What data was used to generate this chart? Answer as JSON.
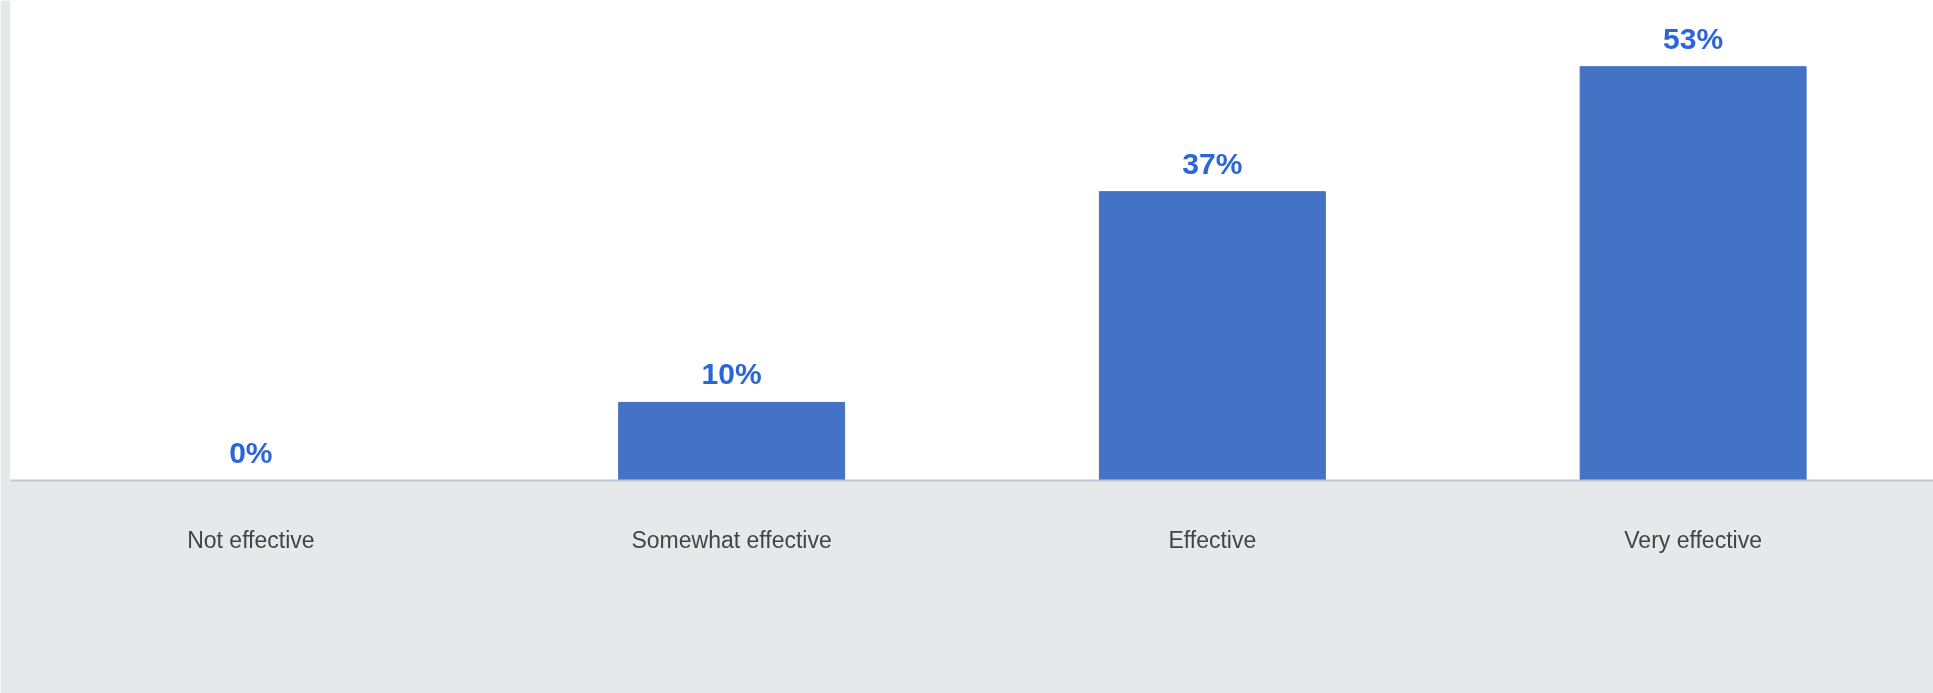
{
  "chart_data": {
    "type": "bar",
    "categories": [
      "Not effective",
      "Somewhat effective",
      "Effective",
      "Very effective"
    ],
    "values": [
      0,
      10,
      37,
      53
    ],
    "value_labels": [
      "0%",
      "10%",
      "37%",
      "53%"
    ],
    "color": "#4472c4",
    "grid": false
  }
}
